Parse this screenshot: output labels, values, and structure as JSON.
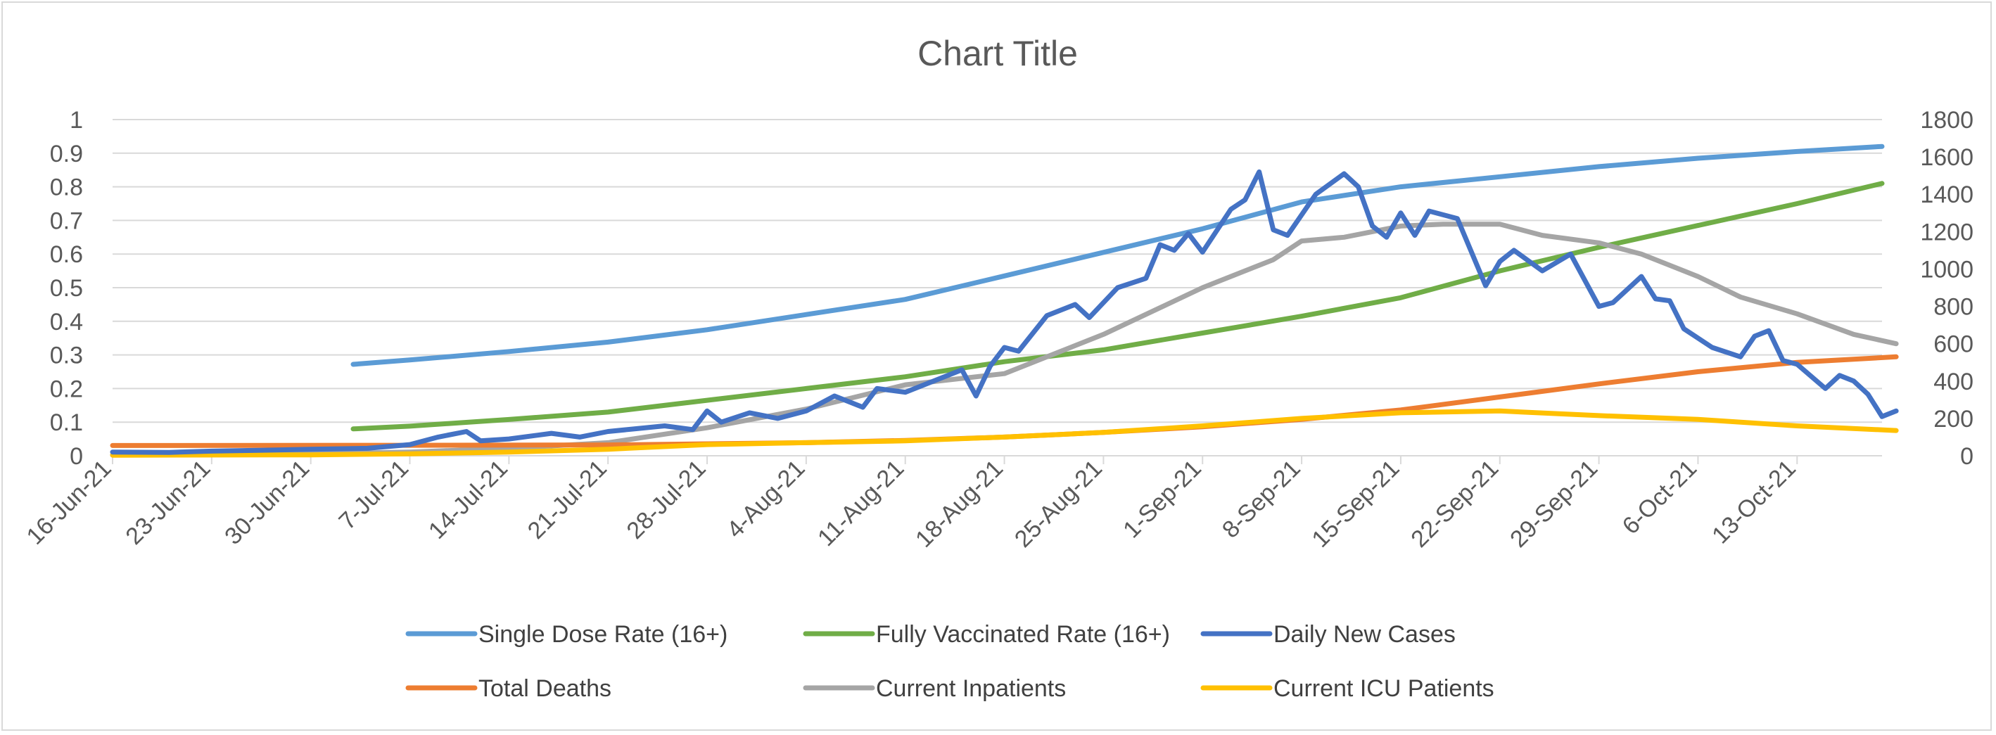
{
  "chart_data": {
    "type": "line",
    "title": "Chart Title",
    "x_labels": [
      "16-Jun-21",
      "23-Jun-21",
      "30-Jun-21",
      "7-Jul-21",
      "14-Jul-21",
      "21-Jul-21",
      "28-Jul-21",
      "4-Aug-21",
      "11-Aug-21",
      "18-Aug-21",
      "25-Aug-21",
      "1-Sep-21",
      "8-Sep-21",
      "15-Sep-21",
      "22-Sep-21",
      "29-Sep-21",
      "6-Oct-21",
      "13-Oct-21"
    ],
    "x_range": [
      "16-Jun-21",
      "19-Oct-21"
    ],
    "y_left": {
      "range": [
        0,
        1
      ],
      "ticks": [
        "0",
        "0.1",
        "0.2",
        "0.3",
        "0.4",
        "0.5",
        "0.6",
        "0.7",
        "0.8",
        "0.9",
        "1"
      ]
    },
    "y_right": {
      "range": [
        0,
        1800
      ],
      "ticks": [
        "0",
        "200",
        "400",
        "600",
        "800",
        "1000",
        "1200",
        "1400",
        "1600",
        "1800"
      ]
    },
    "grid": true,
    "legend_position": "bottom",
    "series": [
      {
        "name": "Single Dose Rate (16+)",
        "axis": "left",
        "color": "#5B9BD5",
        "points": [
          [
            "3-Jul-21",
            0.272
          ],
          [
            "7-Jul-21",
            0.285
          ],
          [
            "14-Jul-21",
            0.31
          ],
          [
            "21-Jul-21",
            0.338
          ],
          [
            "28-Jul-21",
            0.375
          ],
          [
            "4-Aug-21",
            0.42
          ],
          [
            "11-Aug-21",
            0.465
          ],
          [
            "18-Aug-21",
            0.535
          ],
          [
            "25-Aug-21",
            0.605
          ],
          [
            "1-Sep-21",
            0.675
          ],
          [
            "8-Sep-21",
            0.755
          ],
          [
            "15-Sep-21",
            0.8
          ],
          [
            "22-Sep-21",
            0.83
          ],
          [
            "29-Sep-21",
            0.86
          ],
          [
            "6-Oct-21",
            0.885
          ],
          [
            "13-Oct-21",
            0.905
          ],
          [
            "19-Oct-21",
            0.92
          ]
        ]
      },
      {
        "name": "Fully Vaccinated Rate (16+)",
        "axis": "left",
        "color": "#70AD47",
        "points": [
          [
            "3-Jul-21",
            0.08
          ],
          [
            "7-Jul-21",
            0.088
          ],
          [
            "14-Jul-21",
            0.108
          ],
          [
            "21-Jul-21",
            0.13
          ],
          [
            "28-Jul-21",
            0.165
          ],
          [
            "4-Aug-21",
            0.2
          ],
          [
            "11-Aug-21",
            0.235
          ],
          [
            "18-Aug-21",
            0.28
          ],
          [
            "25-Aug-21",
            0.315
          ],
          [
            "1-Sep-21",
            0.365
          ],
          [
            "8-Sep-21",
            0.415
          ],
          [
            "15-Sep-21",
            0.47
          ],
          [
            "22-Sep-21",
            0.55
          ],
          [
            "29-Sep-21",
            0.62
          ],
          [
            "6-Oct-21",
            0.685
          ],
          [
            "13-Oct-21",
            0.75
          ],
          [
            "19-Oct-21",
            0.81
          ]
        ]
      },
      {
        "name": "Daily New Cases",
        "axis": "right",
        "color": "#4472C4",
        "points": [
          [
            "16-Jun-21",
            20
          ],
          [
            "20-Jun-21",
            18
          ],
          [
            "23-Jun-21",
            25
          ],
          [
            "27-Jun-21",
            30
          ],
          [
            "30-Jun-21",
            35
          ],
          [
            "4-Jul-21",
            40
          ],
          [
            "7-Jul-21",
            60
          ],
          [
            "9-Jul-21",
            100
          ],
          [
            "11-Jul-21",
            130
          ],
          [
            "12-Jul-21",
            80
          ],
          [
            "14-Jul-21",
            90
          ],
          [
            "16-Jul-21",
            110
          ],
          [
            "17-Jul-21",
            120
          ],
          [
            "19-Jul-21",
            100
          ],
          [
            "21-Jul-21",
            130
          ],
          [
            "23-Jul-21",
            145
          ],
          [
            "25-Jul-21",
            160
          ],
          [
            "27-Jul-21",
            140
          ],
          [
            "28-Jul-21",
            240
          ],
          [
            "29-Jul-21",
            180
          ],
          [
            "31-Jul-21",
            230
          ],
          [
            "2-Aug-21",
            200
          ],
          [
            "4-Aug-21",
            240
          ],
          [
            "6-Aug-21",
            320
          ],
          [
            "8-Aug-21",
            260
          ],
          [
            "9-Aug-21",
            360
          ],
          [
            "11-Aug-21",
            340
          ],
          [
            "13-Aug-21",
            400
          ],
          [
            "15-Aug-21",
            460
          ],
          [
            "16-Aug-21",
            320
          ],
          [
            "17-Aug-21",
            480
          ],
          [
            "18-Aug-21",
            580
          ],
          [
            "19-Aug-21",
            560
          ],
          [
            "21-Aug-21",
            750
          ],
          [
            "23-Aug-21",
            810
          ],
          [
            "24-Aug-21",
            740
          ],
          [
            "26-Aug-21",
            900
          ],
          [
            "28-Aug-21",
            950
          ],
          [
            "29-Aug-21",
            1130
          ],
          [
            "30-Aug-21",
            1100
          ],
          [
            "31-Aug-21",
            1190
          ],
          [
            "1-Sep-21",
            1090
          ],
          [
            "3-Sep-21",
            1320
          ],
          [
            "4-Sep-21",
            1370
          ],
          [
            "5-Sep-21",
            1520
          ],
          [
            "6-Sep-21",
            1210
          ],
          [
            "7-Sep-21",
            1180
          ],
          [
            "9-Sep-21",
            1400
          ],
          [
            "11-Sep-21",
            1510
          ],
          [
            "12-Sep-21",
            1440
          ],
          [
            "13-Sep-21",
            1230
          ],
          [
            "14-Sep-21",
            1170
          ],
          [
            "15-Sep-21",
            1300
          ],
          [
            "16-Sep-21",
            1180
          ],
          [
            "17-Sep-21",
            1310
          ],
          [
            "19-Sep-21",
            1270
          ],
          [
            "20-Sep-21",
            1090
          ],
          [
            "21-Sep-21",
            910
          ],
          [
            "22-Sep-21",
            1040
          ],
          [
            "23-Sep-21",
            1100
          ],
          [
            "25-Sep-21",
            990
          ],
          [
            "27-Sep-21",
            1080
          ],
          [
            "29-Sep-21",
            800
          ],
          [
            "30-Sep-21",
            820
          ],
          [
            "2-Oct-21",
            960
          ],
          [
            "3-Oct-21",
            840
          ],
          [
            "4-Oct-21",
            830
          ],
          [
            "5-Oct-21",
            680
          ],
          [
            "7-Oct-21",
            580
          ],
          [
            "9-Oct-21",
            530
          ],
          [
            "10-Oct-21",
            640
          ],
          [
            "11-Oct-21",
            670
          ],
          [
            "12-Oct-21",
            510
          ],
          [
            "13-Oct-21",
            490
          ],
          [
            "15-Oct-21",
            360
          ],
          [
            "16-Oct-21",
            430
          ],
          [
            "17-Oct-21",
            400
          ],
          [
            "18-Oct-21",
            330
          ],
          [
            "19-Oct-21",
            210
          ],
          [
            "20-Oct-21",
            240
          ]
        ]
      },
      {
        "name": "Total Deaths",
        "axis": "right",
        "color": "#ED7D31",
        "points": [
          [
            "16-Jun-21",
            55
          ],
          [
            "7-Jul-21",
            56
          ],
          [
            "21-Jul-21",
            58
          ],
          [
            "4-Aug-21",
            70
          ],
          [
            "11-Aug-21",
            82
          ],
          [
            "18-Aug-21",
            100
          ],
          [
            "25-Aug-21",
            125
          ],
          [
            "1-Sep-21",
            155
          ],
          [
            "8-Sep-21",
            195
          ],
          [
            "15-Sep-21",
            245
          ],
          [
            "22-Sep-21",
            315
          ],
          [
            "29-Sep-21",
            385
          ],
          [
            "6-Oct-21",
            450
          ],
          [
            "13-Oct-21",
            500
          ],
          [
            "20-Oct-21",
            530
          ]
        ]
      },
      {
        "name": "Current Inpatients",
        "axis": "right",
        "color": "#A5A5A5",
        "points": [
          [
            "16-Jun-21",
            5
          ],
          [
            "30-Jun-21",
            10
          ],
          [
            "7-Jul-21",
            20
          ],
          [
            "14-Jul-21",
            40
          ],
          [
            "21-Jul-21",
            70
          ],
          [
            "28-Jul-21",
            150
          ],
          [
            "4-Aug-21",
            250
          ],
          [
            "11-Aug-21",
            380
          ],
          [
            "18-Aug-21",
            440
          ],
          [
            "25-Aug-21",
            650
          ],
          [
            "1-Sep-21",
            900
          ],
          [
            "6-Sep-21",
            1050
          ],
          [
            "8-Sep-21",
            1150
          ],
          [
            "11-Sep-21",
            1170
          ],
          [
            "15-Sep-21",
            1230
          ],
          [
            "18-Sep-21",
            1240
          ],
          [
            "22-Sep-21",
            1240
          ],
          [
            "25-Sep-21",
            1180
          ],
          [
            "29-Sep-21",
            1140
          ],
          [
            "2-Oct-21",
            1080
          ],
          [
            "6-Oct-21",
            960
          ],
          [
            "9-Oct-21",
            850
          ],
          [
            "13-Oct-21",
            760
          ],
          [
            "17-Oct-21",
            650
          ],
          [
            "20-Oct-21",
            600
          ]
        ]
      },
      {
        "name": "Current ICU Patients",
        "axis": "right",
        "color": "#FFC000",
        "points": [
          [
            "16-Jun-21",
            3
          ],
          [
            "30-Jun-21",
            5
          ],
          [
            "7-Jul-21",
            10
          ],
          [
            "14-Jul-21",
            20
          ],
          [
            "21-Jul-21",
            35
          ],
          [
            "28-Jul-21",
            60
          ],
          [
            "4-Aug-21",
            70
          ],
          [
            "11-Aug-21",
            80
          ],
          [
            "18-Aug-21",
            100
          ],
          [
            "25-Aug-21",
            125
          ],
          [
            "1-Sep-21",
            160
          ],
          [
            "8-Sep-21",
            200
          ],
          [
            "15-Sep-21",
            230
          ],
          [
            "22-Sep-21",
            240
          ],
          [
            "29-Sep-21",
            215
          ],
          [
            "6-Oct-21",
            195
          ],
          [
            "13-Oct-21",
            160
          ],
          [
            "20-Oct-21",
            135
          ]
        ]
      }
    ]
  }
}
